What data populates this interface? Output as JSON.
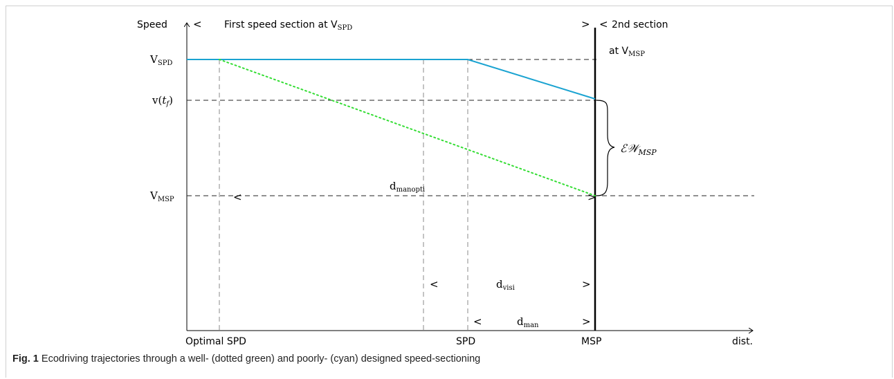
{
  "figure": {
    "y_axis_label": "Speed",
    "x_axis_label": "dist.",
    "section1_label_prefix": "First speed section at V",
    "section1_label_sub": "SPD",
    "section2_label": "2nd section",
    "section2_label_line2_prefix": "at V",
    "section2_label_line2_sub": "MSP",
    "bracket_left": "<",
    "bracket_right": ">",
    "y_levels": [
      {
        "id": "vspd",
        "base": "V",
        "sub": "SPD"
      },
      {
        "id": "vtf",
        "text": "v(",
        "italic": "t",
        "isub": "f",
        "close": ")"
      },
      {
        "id": "vmsp",
        "base": "V",
        "sub": "MSP"
      }
    ],
    "x_ticks": [
      "Optimal SPD",
      "SPD",
      "MSP"
    ],
    "ew_label_base": "ℰ𝒲",
    "ew_label_sub": "MSP",
    "d_manopti": {
      "base": "d",
      "sub": "manopti"
    },
    "d_visi": {
      "base": "d",
      "sub": "visi"
    },
    "d_man": {
      "base": "d",
      "sub": "man"
    },
    "colors": {
      "well_designed": "#33dd33",
      "poorly_designed": "#1aa3d1",
      "axis": "#000000",
      "dashed": "#222222",
      "guide": "#888888"
    }
  },
  "caption": {
    "label": "Fig. 1",
    "text": " Ecodriving trajectories through a well- (dotted green) and poorly- (cyan) designed speed-sectioning"
  }
}
